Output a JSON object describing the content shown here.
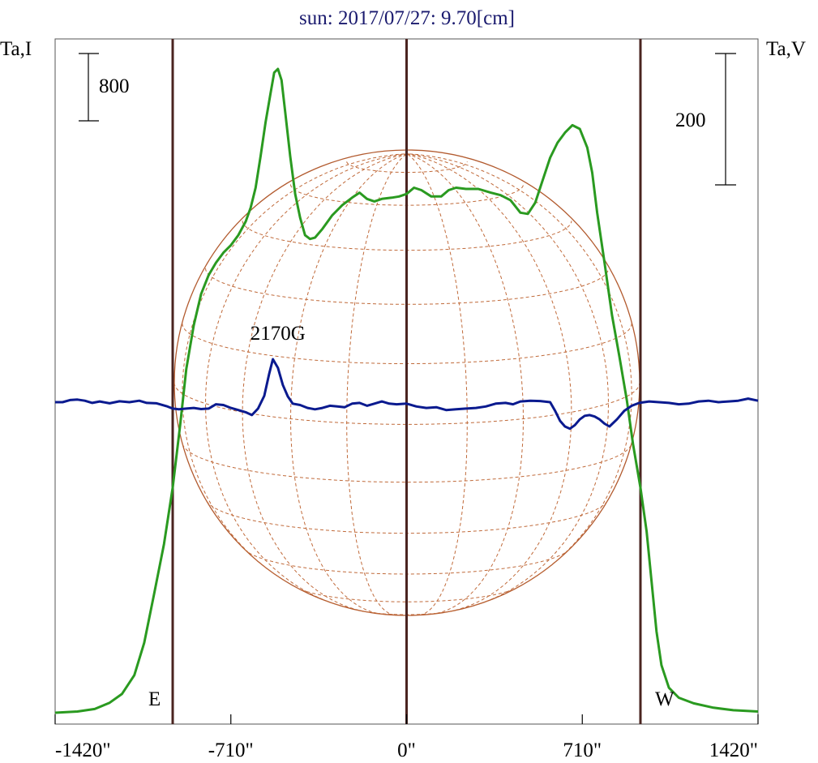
{
  "chart_data": {
    "type": "line",
    "title": "sun: 2017/07/27: 9.70[cm]",
    "left_axis_label": "Ta,I",
    "right_axis_label": "Ta,V",
    "x_ticks": [
      "-1420\"",
      "-710\"",
      "0\"",
      "710\"",
      "1420\""
    ],
    "x_tick_values": [
      -1420,
      -710,
      0,
      710,
      1420
    ],
    "xlim": [
      -1420,
      1420
    ],
    "scale_bar_left": "800",
    "scale_bar_right": "200",
    "limb_labels": {
      "east": "E",
      "west": "W"
    },
    "limb_positions": [
      -945,
      0,
      945
    ],
    "annotation": "2170G",
    "annotation_x": -520,
    "grid": false,
    "series": [
      {
        "key": "intensity",
        "color": "#2a9a20",
        "points": [
          [
            -1420,
            0
          ],
          [
            -1330,
            10
          ],
          [
            -1260,
            30
          ],
          [
            -1200,
            80
          ],
          [
            -1150,
            150
          ],
          [
            -1100,
            300
          ],
          [
            -1060,
            560
          ],
          [
            -1020,
            950
          ],
          [
            -980,
            1350
          ],
          [
            -945,
            1800
          ],
          [
            -915,
            2300
          ],
          [
            -890,
            2750
          ],
          [
            -860,
            3100
          ],
          [
            -830,
            3350
          ],
          [
            -800,
            3500
          ],
          [
            -770,
            3600
          ],
          [
            -740,
            3680
          ],
          [
            -710,
            3740
          ],
          [
            -680,
            3820
          ],
          [
            -650,
            3930
          ],
          [
            -630,
            4040
          ],
          [
            -610,
            4200
          ],
          [
            -590,
            4450
          ],
          [
            -570,
            4720
          ],
          [
            -550,
            4950
          ],
          [
            -535,
            5120
          ],
          [
            -520,
            5150
          ],
          [
            -505,
            5060
          ],
          [
            -490,
            4800
          ],
          [
            -470,
            4450
          ],
          [
            -450,
            4150
          ],
          [
            -430,
            3960
          ],
          [
            -410,
            3820
          ],
          [
            -390,
            3790
          ],
          [
            -370,
            3800
          ],
          [
            -340,
            3870
          ],
          [
            -300,
            3980
          ],
          [
            -260,
            4060
          ],
          [
            -220,
            4120
          ],
          [
            -190,
            4160
          ],
          [
            -160,
            4110
          ],
          [
            -130,
            4090
          ],
          [
            -100,
            4110
          ],
          [
            -60,
            4120
          ],
          [
            -30,
            4130
          ],
          [
            0,
            4150
          ],
          [
            30,
            4200
          ],
          [
            60,
            4180
          ],
          [
            100,
            4130
          ],
          [
            140,
            4130
          ],
          [
            170,
            4180
          ],
          [
            200,
            4200
          ],
          [
            240,
            4190
          ],
          [
            290,
            4190
          ],
          [
            340,
            4160
          ],
          [
            380,
            4140
          ],
          [
            420,
            4100
          ],
          [
            460,
            4000
          ],
          [
            490,
            3990
          ],
          [
            520,
            4080
          ],
          [
            550,
            4260
          ],
          [
            580,
            4440
          ],
          [
            610,
            4560
          ],
          [
            640,
            4640
          ],
          [
            670,
            4700
          ],
          [
            700,
            4670
          ],
          [
            730,
            4520
          ],
          [
            750,
            4320
          ],
          [
            770,
            4000
          ],
          [
            800,
            3600
          ],
          [
            830,
            3180
          ],
          [
            860,
            2850
          ],
          [
            890,
            2500
          ],
          [
            915,
            2150
          ],
          [
            945,
            1800
          ],
          [
            970,
            1450
          ],
          [
            990,
            1050
          ],
          [
            1010,
            650
          ],
          [
            1030,
            380
          ],
          [
            1060,
            200
          ],
          [
            1100,
            120
          ],
          [
            1160,
            75
          ],
          [
            1240,
            40
          ],
          [
            1320,
            20
          ],
          [
            1420,
            10
          ]
        ]
      },
      {
        "key": "polarization",
        "color": "#0a1a8f",
        "points": [
          [
            -1420,
            0
          ],
          [
            -1390,
            0
          ],
          [
            -1360,
            15
          ],
          [
            -1330,
            18
          ],
          [
            -1300,
            10
          ],
          [
            -1270,
            -5
          ],
          [
            -1240,
            5
          ],
          [
            -1200,
            -8
          ],
          [
            -1160,
            6
          ],
          [
            -1120,
            0
          ],
          [
            -1080,
            10
          ],
          [
            -1050,
            -5
          ],
          [
            -1010,
            -8
          ],
          [
            -970,
            -28
          ],
          [
            -945,
            -45
          ],
          [
            -920,
            -50
          ],
          [
            -890,
            -45
          ],
          [
            -860,
            -40
          ],
          [
            -830,
            -48
          ],
          [
            -800,
            -45
          ],
          [
            -770,
            -15
          ],
          [
            -740,
            -20
          ],
          [
            -710,
            -40
          ],
          [
            -680,
            -55
          ],
          [
            -650,
            -70
          ],
          [
            -625,
            -90
          ],
          [
            -600,
            -45
          ],
          [
            -575,
            45
          ],
          [
            -555,
            200
          ],
          [
            -540,
            300
          ],
          [
            -520,
            240
          ],
          [
            -500,
            120
          ],
          [
            -480,
            40
          ],
          [
            -460,
            -10
          ],
          [
            -430,
            -20
          ],
          [
            -400,
            -40
          ],
          [
            -370,
            -50
          ],
          [
            -340,
            -40
          ],
          [
            -310,
            -25
          ],
          [
            -280,
            -30
          ],
          [
            -250,
            -35
          ],
          [
            -220,
            -10
          ],
          [
            -190,
            -5
          ],
          [
            -160,
            -25
          ],
          [
            -130,
            -10
          ],
          [
            -100,
            5
          ],
          [
            -70,
            -10
          ],
          [
            -40,
            -15
          ],
          [
            0,
            -10
          ],
          [
            40,
            -30
          ],
          [
            80,
            -40
          ],
          [
            120,
            -35
          ],
          [
            160,
            -55
          ],
          [
            200,
            -50
          ],
          [
            240,
            -45
          ],
          [
            280,
            -40
          ],
          [
            320,
            -30
          ],
          [
            360,
            -10
          ],
          [
            400,
            -5
          ],
          [
            430,
            -15
          ],
          [
            460,
            5
          ],
          [
            500,
            10
          ],
          [
            540,
            8
          ],
          [
            580,
            0
          ],
          [
            600,
            -60
          ],
          [
            620,
            -130
          ],
          [
            640,
            -170
          ],
          [
            660,
            -185
          ],
          [
            680,
            -160
          ],
          [
            700,
            -120
          ],
          [
            720,
            -95
          ],
          [
            740,
            -90
          ],
          [
            760,
            -100
          ],
          [
            780,
            -120
          ],
          [
            800,
            -150
          ],
          [
            820,
            -170
          ],
          [
            850,
            -120
          ],
          [
            880,
            -60
          ],
          [
            910,
            -25
          ],
          [
            940,
            -5
          ],
          [
            980,
            5
          ],
          [
            1020,
            0
          ],
          [
            1060,
            -5
          ],
          [
            1100,
            -15
          ],
          [
            1140,
            -10
          ],
          [
            1180,
            5
          ],
          [
            1220,
            10
          ],
          [
            1260,
            0
          ],
          [
            1300,
            5
          ],
          [
            1340,
            10
          ],
          [
            1380,
            25
          ],
          [
            1420,
            10
          ]
        ]
      }
    ]
  }
}
